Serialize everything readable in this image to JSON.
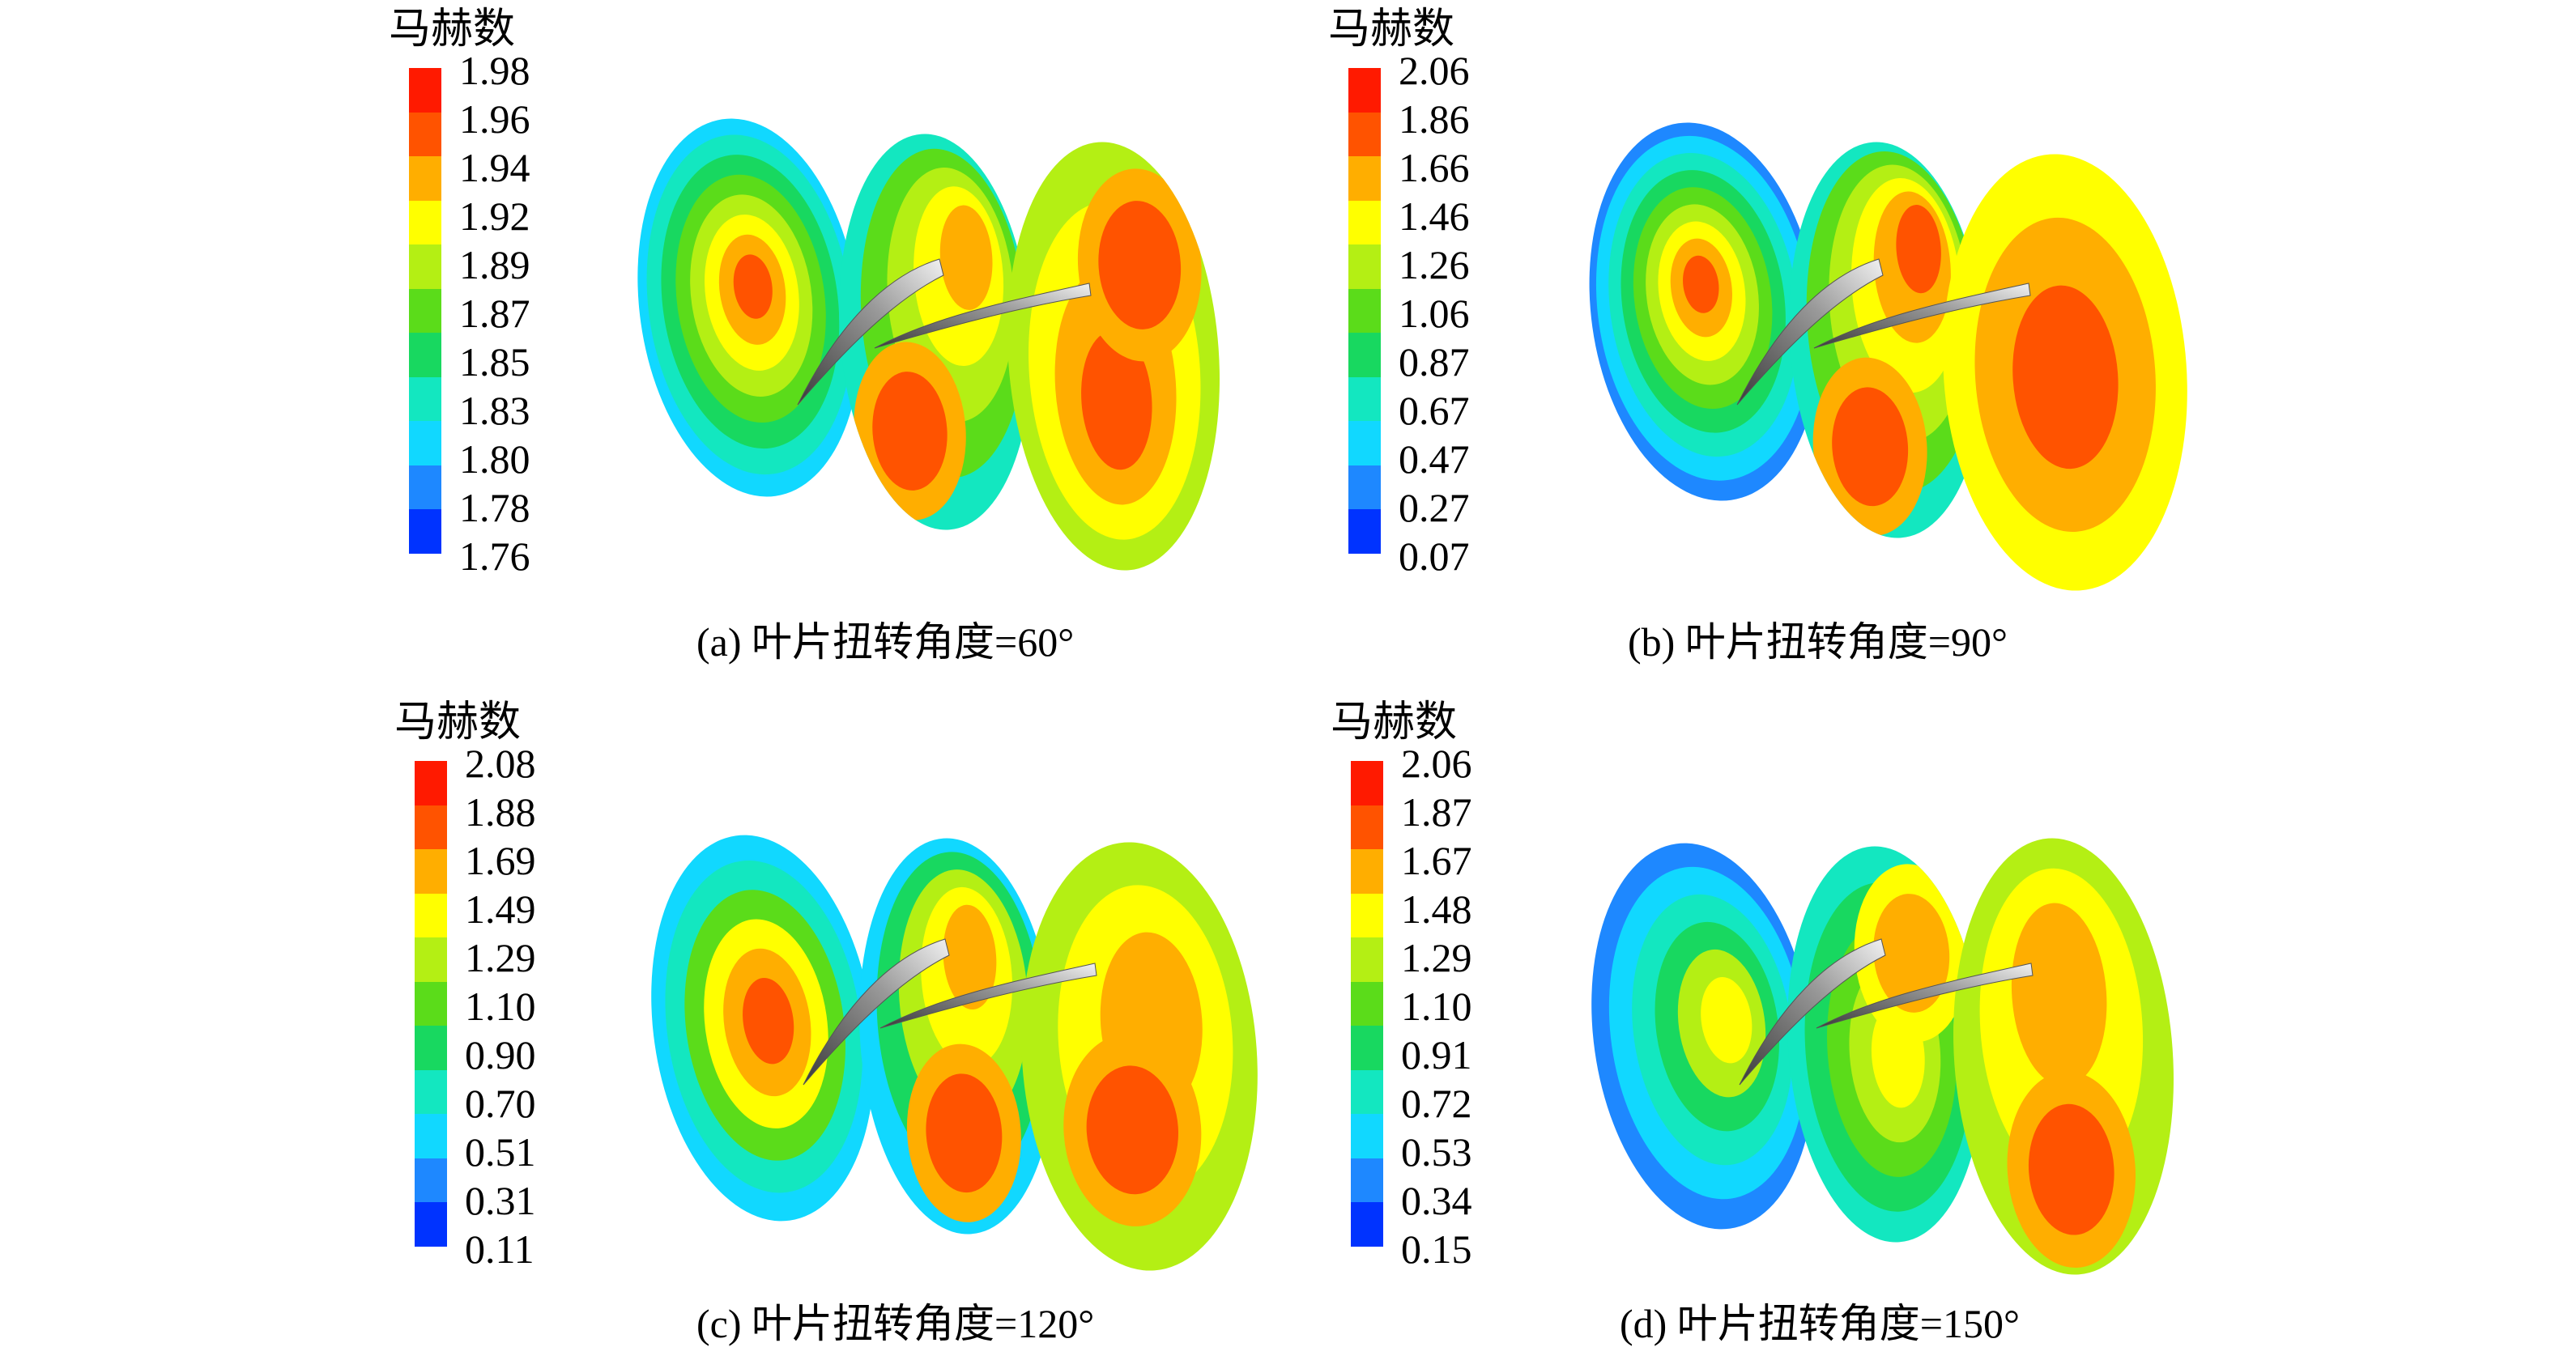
{
  "colormap": [
    "#0033ff",
    "#1e88ff",
    "#11d8ff",
    "#13e7c0",
    "#18d860",
    "#5bdc1a",
    "#b4ef14",
    "#ffff00",
    "#ffae00",
    "#ff5300",
    "#ff1a00"
  ],
  "panels": [
    {
      "id": "a",
      "unit_label": "马赫数",
      "ticks": [
        "1.98",
        "1.96",
        "1.94",
        "1.92",
        "1.89",
        "1.87",
        "1.85",
        "1.83",
        "1.80",
        "1.78",
        "1.76"
      ],
      "caption": "(a) 叶片扭转角度=60°"
    },
    {
      "id": "b",
      "unit_label": "马赫数",
      "ticks": [
        "2.06",
        "1.86",
        "1.66",
        "1.46",
        "1.26",
        "1.06",
        "0.87",
        "0.67",
        "0.47",
        "0.27",
        "0.07"
      ],
      "caption": "(b) 叶片扭转角度=90°"
    },
    {
      "id": "c",
      "unit_label": "马赫数",
      "ticks": [
        "2.08",
        "1.88",
        "1.69",
        "1.49",
        "1.29",
        "1.10",
        "0.90",
        "0.70",
        "0.51",
        "0.31",
        "0.11"
      ],
      "caption": "(c) 叶片扭转角度=120°"
    },
    {
      "id": "d",
      "unit_label": "马赫数",
      "ticks": [
        "2.06",
        "1.87",
        "1.67",
        "1.48",
        "1.29",
        "1.10",
        "0.91",
        "0.72",
        "0.53",
        "0.34",
        "0.15"
      ],
      "caption": "(d) 叶片扭转角度=150°"
    }
  ]
}
